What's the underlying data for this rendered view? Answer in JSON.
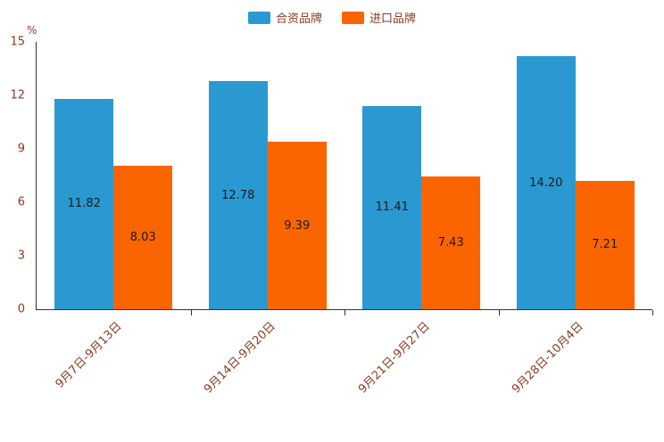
{
  "chart_data": {
    "type": "bar",
    "title": "",
    "unit_label": "%",
    "categories": [
      "9月7日-9月13日",
      "9月14日-9月20日",
      "9月21日-9月27日",
      "9月28日-10月4日"
    ],
    "series": [
      {
        "name": "合资品牌",
        "color": "#2A99D2",
        "values": [
          11.82,
          12.78,
          11.41,
          14.2
        ]
      },
      {
        "name": "进口品牌",
        "color": "#FB6500",
        "values": [
          8.03,
          9.39,
          7.43,
          7.21
        ]
      }
    ],
    "ylim": [
      0,
      15
    ],
    "yticks": [
      0,
      3,
      6,
      9,
      12,
      15
    ],
    "grid": false,
    "legend_position": "top",
    "value_labels": true,
    "value_label_decimals": 2
  },
  "colors": {
    "axis_text": "#8D3A22",
    "axis_line": "#333333",
    "value_label": "#1c1c1c"
  }
}
